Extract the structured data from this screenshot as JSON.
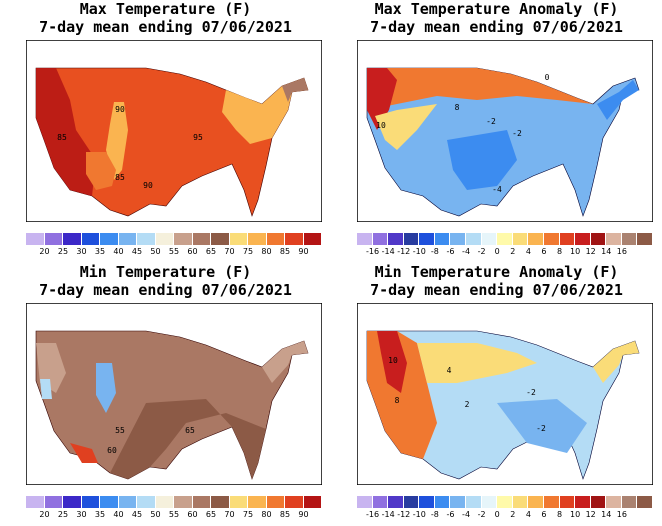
{
  "panels": [
    {
      "id": "max-temp",
      "title_line1": "Max Temperature (F)",
      "title_line2": "7-day mean ending 07/06/2021",
      "map_labels": [
        "90",
        "85",
        "95",
        "85",
        "90"
      ],
      "colorbar": {
        "colors": [
          "#c8b4f0",
          "#9070e0",
          "#3c28c8",
          "#1e50dc",
          "#3c8cf0",
          "#78b4f0",
          "#b4dcf5",
          "#f5f0dc",
          "#c8a08c",
          "#aa7864",
          "#8c5a46",
          "#fadc78",
          "#fab450",
          "#f07830",
          "#e04020",
          "#b41414"
        ],
        "ticks": [
          "20",
          "25",
          "30",
          "35",
          "40",
          "45",
          "50",
          "55",
          "60",
          "65",
          "70",
          "75",
          "80",
          "85",
          "90"
        ]
      }
    },
    {
      "id": "max-temp-anomaly",
      "title_line1": "Max Temperature Anomaly (F)",
      "title_line2": "7-day mean ending 07/06/2021",
      "map_labels": [
        "0",
        "8",
        "10",
        "-2",
        "-2",
        "-4"
      ],
      "colorbar": {
        "colors": [
          "#c8b4f0",
          "#9070e0",
          "#5038c8",
          "#283ca0",
          "#1e50dc",
          "#3c8cf0",
          "#78b4f0",
          "#b4dcf5",
          "#e6f5fa",
          "#fffaaa",
          "#fadc78",
          "#fab450",
          "#f07830",
          "#e04020",
          "#c81e1e",
          "#a01414",
          "#dcb4a0",
          "#aa8270",
          "#8c5a46"
        ],
        "ticks": [
          "-16",
          "-14",
          "-12",
          "-10",
          "-8",
          "-6",
          "-4",
          "-2",
          "0",
          "2",
          "4",
          "6",
          "8",
          "10",
          "12",
          "14",
          "16"
        ]
      }
    },
    {
      "id": "min-temp",
      "title_line1": "Min Temperature (F)",
      "title_line2": "7-day mean ending 07/06/2021",
      "map_labels": [
        "55",
        "65",
        "60"
      ],
      "colorbar": {
        "colors": [
          "#c8b4f0",
          "#9070e0",
          "#3c28c8",
          "#1e50dc",
          "#3c8cf0",
          "#78b4f0",
          "#b4dcf5",
          "#f5f0dc",
          "#c8a08c",
          "#aa7864",
          "#8c5a46",
          "#fadc78",
          "#fab450",
          "#f07830",
          "#e04020",
          "#b41414"
        ],
        "ticks": [
          "20",
          "25",
          "30",
          "35",
          "40",
          "45",
          "50",
          "55",
          "60",
          "65",
          "70",
          "75",
          "80",
          "85",
          "90"
        ]
      }
    },
    {
      "id": "min-temp-anomaly",
      "title_line1": "Min Temperature Anomaly (F)",
      "title_line2": "7-day mean ending 07/06/2021",
      "map_labels": [
        "10",
        "4",
        "8",
        "2",
        "-2",
        "-2"
      ],
      "colorbar": {
        "colors": [
          "#c8b4f0",
          "#9070e0",
          "#5038c8",
          "#283ca0",
          "#1e50dc",
          "#3c8cf0",
          "#78b4f0",
          "#b4dcf5",
          "#e6f5fa",
          "#fffaaa",
          "#fadc78",
          "#fab450",
          "#f07830",
          "#e04020",
          "#c81e1e",
          "#a01414",
          "#dcb4a0",
          "#aa8270",
          "#8c5a46"
        ],
        "ticks": [
          "-16",
          "-14",
          "-12",
          "-10",
          "-8",
          "-6",
          "-4",
          "-2",
          "0",
          "2",
          "4",
          "6",
          "8",
          "10",
          "12",
          "14",
          "16"
        ]
      }
    }
  ]
}
